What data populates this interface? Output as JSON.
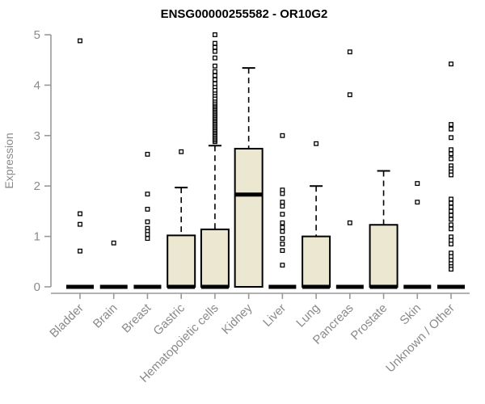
{
  "title": "ENSG00000255582 - OR10G2",
  "chart_data": {
    "type": "boxplot",
    "title": "ENSG00000255582 - OR10G2",
    "xlabel": "",
    "ylabel": "Expression",
    "ylim": [
      0,
      5
    ],
    "yticks": [
      "0",
      "1",
      "2",
      "3",
      "4",
      "5"
    ],
    "grid": false,
    "legend": "none",
    "background_color": "#ffffff",
    "box_fill_color": "#ece7d0",
    "box_line_color": "#000000",
    "axis_color": "#999999",
    "label_color": "#8a8a8a",
    "title_color": "#000000",
    "categories": [
      "Bladder",
      "Brain",
      "Breast",
      "Gastric",
      "Hematopoietic cells",
      "Kidney",
      "Liver",
      "Lung",
      "Pancreas",
      "Prostate",
      "Skin",
      "Unknown / Other"
    ],
    "series": [
      {
        "category": "Bladder",
        "median": 0,
        "q1": 0,
        "q3": 0,
        "whisker_low": 0,
        "whisker_high": 0,
        "outliers": [
          4.88,
          1.45,
          1.24,
          0.71
        ]
      },
      {
        "category": "Brain",
        "median": 0,
        "q1": 0,
        "q3": 0,
        "whisker_low": 0,
        "whisker_high": 0,
        "outliers": [
          0.87
        ]
      },
      {
        "category": "Breast",
        "median": 0,
        "q1": 0,
        "q3": 0,
        "whisker_low": 0,
        "whisker_high": 0,
        "outliers": [
          2.63,
          1.84,
          1.54,
          1.29,
          1.16,
          1.1,
          1.04,
          0.96
        ]
      },
      {
        "category": "Gastric",
        "median": 0,
        "q1": 0,
        "q3": 1.02,
        "whisker_low": 0,
        "whisker_high": 1.97,
        "outliers": [
          2.68
        ]
      },
      {
        "category": "Hematopoietic cells",
        "median": 0,
        "q1": 0,
        "q3": 1.14,
        "whisker_low": 0,
        "whisker_high": 2.8,
        "outliers": [
          2.88,
          2.91,
          2.94,
          2.97,
          3.0,
          3.03,
          3.06,
          3.09,
          3.12,
          3.15,
          3.18,
          3.21,
          3.24,
          3.27,
          3.3,
          3.33,
          3.36,
          3.39,
          3.42,
          3.45,
          3.48,
          3.51,
          3.54,
          3.57,
          3.6,
          3.63,
          3.66,
          3.7,
          3.74,
          3.8,
          3.85,
          3.9,
          3.97,
          4.03,
          4.11,
          4.19,
          4.27,
          4.38,
          4.54,
          4.67,
          4.75,
          4.83,
          5.0
        ]
      },
      {
        "category": "Kidney",
        "median": 1.83,
        "q1": 0,
        "q3": 2.74,
        "whisker_low": 0,
        "whisker_high": 4.34,
        "outliers": []
      },
      {
        "category": "Liver",
        "median": 0,
        "q1": 0,
        "q3": 0,
        "whisker_low": 0,
        "whisker_high": 0,
        "outliers": [
          3.0,
          1.92,
          1.85,
          1.68,
          1.6,
          1.44,
          1.27,
          1.18,
          1.1,
          0.96,
          0.85,
          0.72,
          0.43
        ]
      },
      {
        "category": "Lung",
        "median": 0,
        "q1": 0,
        "q3": 1.0,
        "whisker_low": 0,
        "whisker_high": 2.0,
        "outliers": [
          2.84
        ]
      },
      {
        "category": "Pancreas",
        "median": 0,
        "q1": 0,
        "q3": 0,
        "whisker_low": 0,
        "whisker_high": 0,
        "outliers": [
          4.66,
          3.81,
          1.27
        ]
      },
      {
        "category": "Prostate",
        "median": 0,
        "q1": 0,
        "q3": 1.23,
        "whisker_low": 0,
        "whisker_high": 2.3,
        "outliers": []
      },
      {
        "category": "Skin",
        "median": 0,
        "q1": 0,
        "q3": 0,
        "whisker_low": 0,
        "whisker_high": 0,
        "outliers": [
          2.05,
          1.68
        ]
      },
      {
        "category": "Unknown / Other",
        "median": 0,
        "q1": 0,
        "q3": 0,
        "whisker_low": 0,
        "whisker_high": 0,
        "outliers": [
          4.42,
          3.22,
          3.13,
          2.96,
          2.72,
          2.64,
          2.54,
          2.4,
          2.34,
          2.28,
          2.22,
          1.74,
          1.66,
          1.58,
          1.5,
          1.42,
          1.34,
          1.23,
          1.15,
          0.99,
          0.92,
          0.85,
          0.67,
          0.6,
          0.53,
          0.46,
          0.4,
          0.35
        ]
      }
    ]
  }
}
